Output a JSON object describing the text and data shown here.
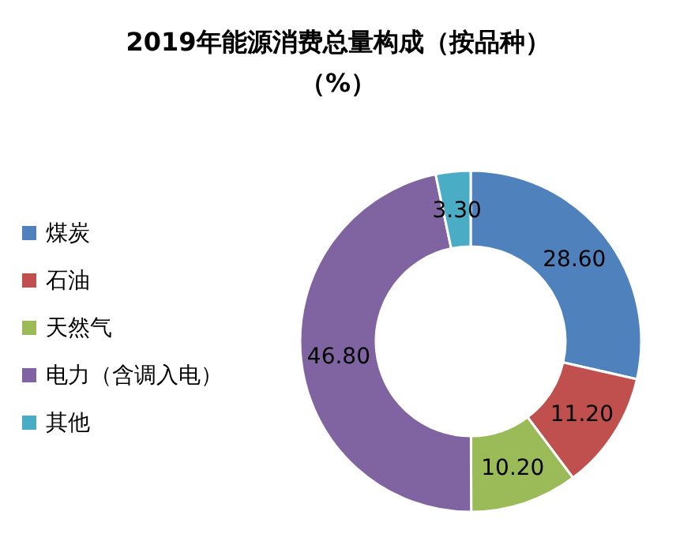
{
  "chart_data": {
    "type": "donut",
    "title": "2019年能源消费总量构成（按品种）",
    "subtitle": "（%）",
    "categories": [
      "煤炭",
      "石油",
      "天然气",
      "电力（含调入电）",
      "其他"
    ],
    "values": [
      28.6,
      11.2,
      10.2,
      46.8,
      3.3
    ],
    "value_labels": [
      "28.60",
      "11.20",
      "10.20",
      "46.80",
      "3.30"
    ],
    "colors": [
      "#4f81bd",
      "#c0504d",
      "#9bbb59",
      "#8064a2",
      "#4bacc6"
    ],
    "legend": "left"
  }
}
